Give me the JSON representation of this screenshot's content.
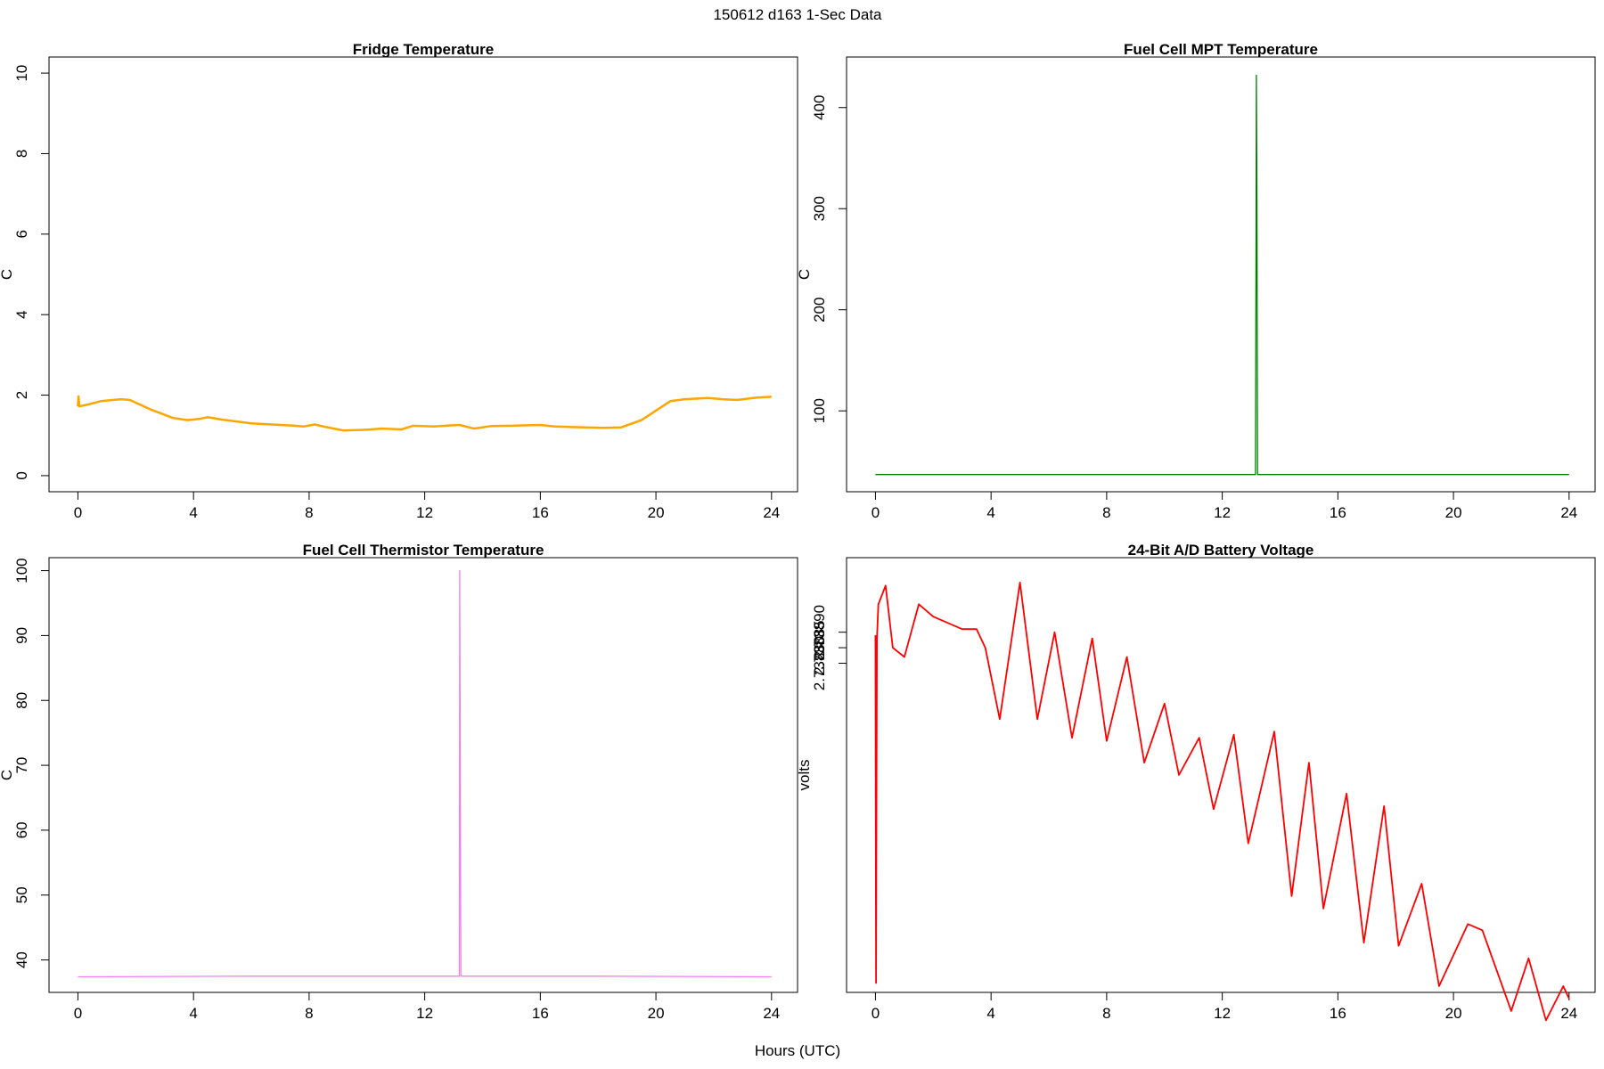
{
  "figure": {
    "title": "150612   d163   1-Sec Data",
    "xlabel": "Hours (UTC)"
  },
  "chart_data": [
    {
      "type": "line",
      "title": "Fridge Temperature",
      "xlabel": "Hours (UTC)",
      "ylabel": "C",
      "xlim": [
        -1,
        24.9
      ],
      "ylim": [
        -0.4,
        10.4
      ],
      "xticks": [
        0,
        4,
        8,
        12,
        16,
        20,
        24
      ],
      "yticks": [
        0,
        2,
        4,
        6,
        8,
        10
      ],
      "color": "#FFA500",
      "x": [
        0,
        0.02,
        0.05,
        0.3,
        0.8,
        1.5,
        1.8,
        2.5,
        3.3,
        3.8,
        4.2,
        4.5,
        5,
        6,
        7.5,
        7.8,
        8.2,
        8.5,
        9.2,
        10,
        10.5,
        11.2,
        11.6,
        12.3,
        13.2,
        13.7,
        14.3,
        15,
        16,
        16.5,
        17.5,
        18.2,
        18.8,
        19.5,
        20.5,
        21,
        21.8,
        22.3,
        22.8,
        23.5,
        24
      ],
      "y": [
        1.72,
        1.97,
        1.72,
        1.76,
        1.85,
        1.9,
        1.88,
        1.65,
        1.43,
        1.38,
        1.41,
        1.45,
        1.39,
        1.3,
        1.24,
        1.22,
        1.27,
        1.22,
        1.12,
        1.14,
        1.17,
        1.15,
        1.24,
        1.22,
        1.26,
        1.17,
        1.23,
        1.24,
        1.26,
        1.22,
        1.2,
        1.19,
        1.2,
        1.38,
        1.85,
        1.9,
        1.93,
        1.9,
        1.88,
        1.94,
        1.96
      ]
    },
    {
      "type": "line",
      "title": "Fuel Cell MPT Temperature",
      "xlabel": "Hours (UTC)",
      "ylabel": "C",
      "xlim": [
        -1,
        24.9
      ],
      "ylim": [
        20,
        450
      ],
      "xticks": [
        0,
        4,
        8,
        12,
        16,
        20,
        24
      ],
      "yticks": [
        100,
        200,
        300,
        400
      ],
      "color": "#008000",
      "x": [
        0,
        13.1,
        13.15,
        13.17,
        13.18,
        13.2,
        13.22,
        24
      ],
      "y": [
        37,
        37,
        37,
        285,
        432,
        320,
        37,
        37
      ]
    },
    {
      "type": "line",
      "title": "Fuel Cell Thermistor Temperature",
      "xlabel": "Hours (UTC)",
      "ylabel": "C",
      "xlim": [
        -1,
        24.9
      ],
      "ylim": [
        35,
        102
      ],
      "xticks": [
        0,
        4,
        8,
        12,
        16,
        20,
        24
      ],
      "yticks": [
        40,
        50,
        60,
        70,
        80,
        90,
        100
      ],
      "color": "#EE82EE",
      "x": [
        0,
        6,
        13.2,
        13.21,
        13.25,
        13.27,
        18,
        24
      ],
      "y": [
        37.4,
        37.5,
        37.5,
        100,
        37.8,
        37.5,
        37.5,
        37.4
      ]
    },
    {
      "type": "line",
      "title": "24-Bit A/D Battery Voltage",
      "xlabel": "Hours (UTC)",
      "ylabel": "volts",
      "xlim": [
        -1,
        24.9
      ],
      "ylim": [
        2.73774,
        2.73914
      ],
      "xticks": [
        0,
        4,
        8,
        12,
        16,
        20,
        24
      ],
      "yticks": [
        2.7388,
        2.73885,
        2.7389
      ],
      "ytick_labels": [
        "2.73880",
        "2.73885",
        "2.73890"
      ],
      "color": "#FF0000",
      "x": [
        0,
        0.02,
        0.05,
        0.1,
        0.35,
        0.6,
        1.0,
        1.5,
        2,
        2.5,
        3,
        3.5,
        3.8,
        4.3,
        5.0,
        5.6,
        6.2,
        6.8,
        7.5,
        8.0,
        8.7,
        9.3,
        10.0,
        10.5,
        11.2,
        11.7,
        12.4,
        12.9,
        13.8,
        14.4,
        15.0,
        15.5,
        16.3,
        16.9,
        17.6,
        18.1,
        18.9,
        19.5,
        20.5,
        21,
        21.5,
        22.0,
        22.6,
        23.2,
        23.8,
        24.0
      ],
      "y": [
        2.73889,
        2.73777,
        2.73888,
        2.73899,
        2.73905,
        2.73885,
        2.73882,
        2.73899,
        2.73895,
        2.73893,
        2.73891,
        2.73891,
        2.73885,
        2.73862,
        2.73906,
        2.73862,
        2.7389,
        2.73856,
        2.73888,
        2.73855,
        2.73882,
        2.73848,
        2.73867,
        2.73844,
        2.73856,
        2.73833,
        2.73857,
        2.73822,
        2.73858,
        2.73805,
        2.73848,
        2.73801,
        2.73838,
        2.7379,
        2.73834,
        2.73789,
        2.73809,
        2.73776,
        2.73796,
        2.73794,
        2.73781,
        2.73768,
        2.73785,
        2.73765,
        2.73776,
        2.73772
      ]
    }
  ]
}
